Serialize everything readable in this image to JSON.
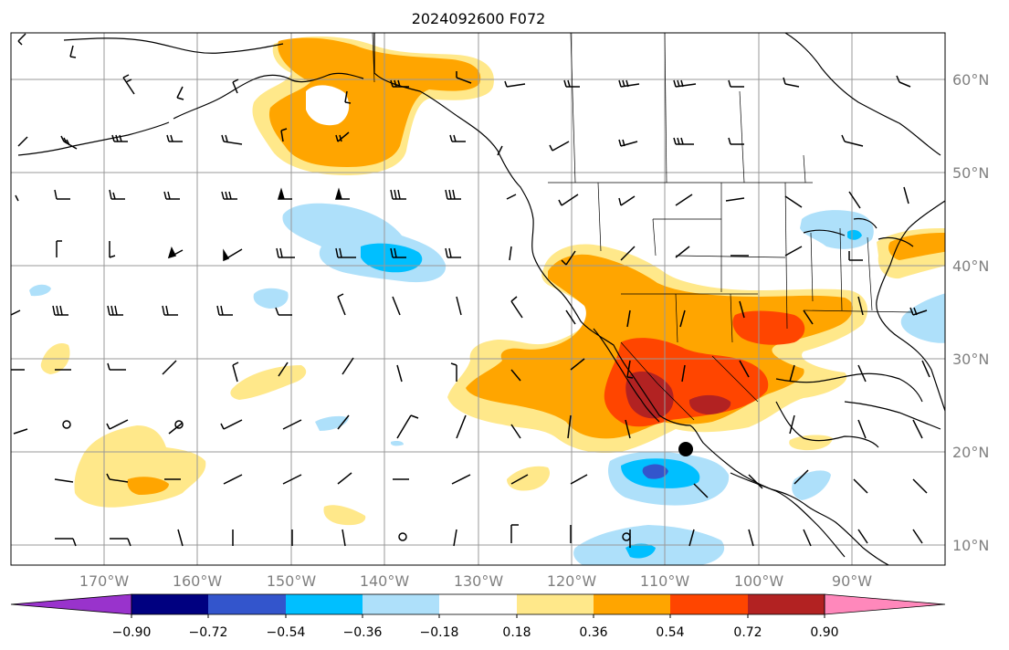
{
  "title": "2024092600 F072",
  "lon_labels": [
    "170°W",
    "160°W",
    "150°W",
    "140°W",
    "130°W",
    "120°W",
    "110°W",
    "100°W",
    "90°W"
  ],
  "lat_labels": [
    "60°N",
    "50°N",
    "40°N",
    "30°N",
    "20°N",
    "10°N"
  ],
  "colorbar": {
    "colors": [
      "#9933cc",
      "#000080",
      "#3355cc",
      "#00bfff",
      "#aee0fa",
      "#ffffff",
      "#ffe88a",
      "#ffa500",
      "#ff4500",
      "#b22222",
      "#ff88bb"
    ],
    "tick_labels": [
      "−0.90",
      "−0.72",
      "−0.54",
      "−0.36",
      "−0.18",
      "0.18",
      "0.36",
      "0.54",
      "0.72",
      "0.90"
    ]
  },
  "colors": {
    "grid": "#999999",
    "coast": "#000000",
    "axis_label": "#808080",
    "light_orange": "#ffe88a",
    "orange": "#ffa500",
    "red_orange": "#ff4500",
    "dark_red": "#b22222",
    "light_blue": "#aee0fa",
    "blue": "#00bfff",
    "royal_blue": "#3355cc"
  },
  "marker": {
    "type": "filled-circle",
    "color": "#000000"
  },
  "layers": [
    "anomaly-shading",
    "wind-barbs",
    "coastlines",
    "state-borders",
    "graticule"
  ]
}
